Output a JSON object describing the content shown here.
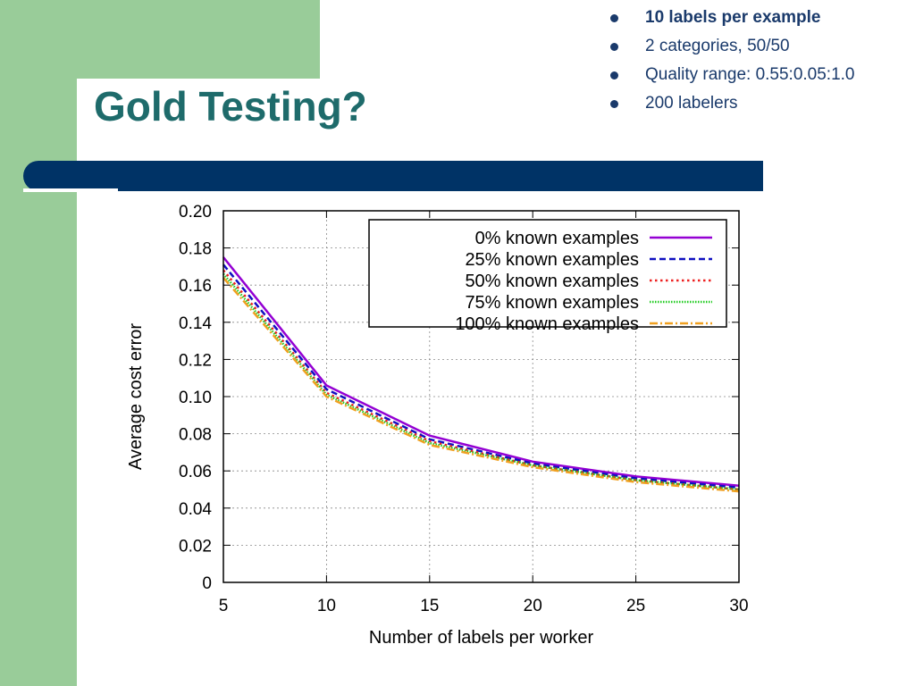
{
  "slide": {
    "title": "Gold Testing?",
    "bullets": [
      "10 labels per example",
      "2 categories, 50/50",
      "Quality range: 0.55:0.05:1.0",
      "200 labelers"
    ]
  },
  "colors": {
    "sidebar_green": "#99cc99",
    "title_teal": "#1e6b6b",
    "bar_navy": "#003366",
    "bullet_navy": "#1a3a6b"
  },
  "chart_data": {
    "type": "line",
    "xlabel": "Number of labels per worker",
    "ylabel": "Average cost error",
    "xlim": [
      5,
      30
    ],
    "ylim": [
      0,
      0.2
    ],
    "x_ticks": [
      5,
      10,
      15,
      20,
      25,
      30
    ],
    "y_ticks": [
      0,
      0.02,
      0.04,
      0.06,
      0.08,
      0.1,
      0.12,
      0.14,
      0.16,
      0.18,
      0.2
    ],
    "x_tick_labels": [
      "5",
      "10",
      "15",
      "20",
      "25",
      "30"
    ],
    "y_tick_labels": [
      "0",
      "0.02",
      "0.04",
      "0.06",
      "0.08",
      "0.10",
      "0.12",
      "0.14",
      "0.16",
      "0.18",
      "0.20"
    ],
    "grid": true,
    "legend_position": "top-right",
    "x": [
      5,
      10,
      15,
      20,
      25,
      30
    ],
    "series": [
      {
        "name": "0% known examples",
        "color": "#9400d3",
        "dash": "solid",
        "values": [
          0.175,
          0.106,
          0.079,
          0.065,
          0.057,
          0.052
        ]
      },
      {
        "name": "25% known examples",
        "color": "#1010c0",
        "dash": "dashed",
        "values": [
          0.171,
          0.104,
          0.077,
          0.064,
          0.056,
          0.051
        ]
      },
      {
        "name": "50% known examples",
        "color": "#ee2020",
        "dash": "dotted",
        "values": [
          0.168,
          0.102,
          0.076,
          0.063,
          0.055,
          0.05
        ]
      },
      {
        "name": "75% known examples",
        "color": "#22cc22",
        "dash": "dotted-fine",
        "values": [
          0.166,
          0.101,
          0.075,
          0.063,
          0.055,
          0.05
        ]
      },
      {
        "name": "100% known examples",
        "color": "#f0a020",
        "dash": "dashdot",
        "values": [
          0.164,
          0.1,
          0.074,
          0.062,
          0.054,
          0.049
        ]
      }
    ]
  }
}
